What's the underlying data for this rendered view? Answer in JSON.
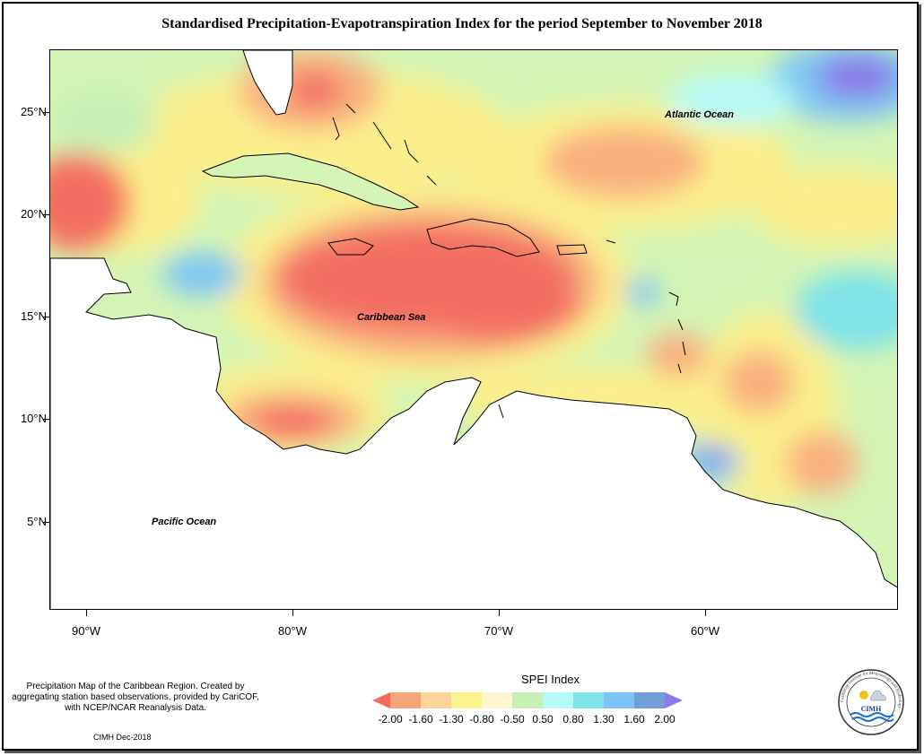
{
  "title": "Standardised Precipitation-Evapotranspiration Index for the period September to November 2018",
  "lat_labels": [
    "25°N",
    "20°N",
    "15°N",
    "10°N",
    "5°N"
  ],
  "lon_labels": [
    "90°W",
    "80°W",
    "70°W",
    "60°W"
  ],
  "oceans": {
    "atlantic": "Atlantic Ocean",
    "caribbean": "Caribbean Sea",
    "pacific": "Pacific Ocean"
  },
  "caption": "Precipitation Map of the Caribbean Region. Created by aggregating station based observations, provided by CariCOF, with NCEP/NCAR Reanalysis Data.",
  "credit": "CIMH Dec-2018",
  "legend": {
    "title": "SPEI Index",
    "labels": [
      "-2.00",
      "-1.60",
      "-1.30",
      "-0.80",
      "-0.50",
      "0.50",
      "0.80",
      "1.30",
      "1.60",
      "2.00"
    ],
    "colors": [
      "#f26b5b",
      "#f6a57a",
      "#fcd39a",
      "#fbf38d",
      "#fdf6cf",
      "#c6f0b6",
      "#b6fbf8",
      "#7fe3e8",
      "#7dc3f5",
      "#6f9fd4",
      "#8b7be8"
    ]
  },
  "logo": {
    "text": "CIMH",
    "ring_text": "Caribbean Institute for Meteorology and Hydrology"
  }
}
